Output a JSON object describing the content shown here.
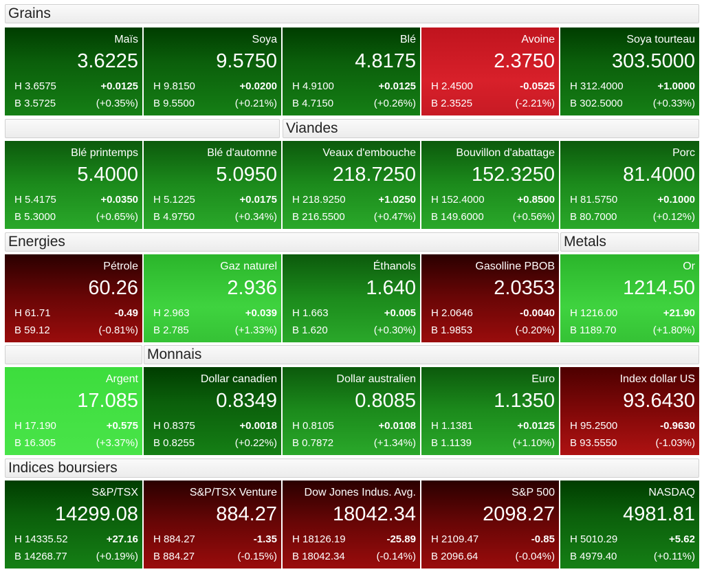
{
  "sections": [
    {
      "label": "Grains",
      "tiles": [
        {
          "name": "Maïs",
          "price": "3.6225",
          "high": "H 3.6575",
          "low": "B 3.5725",
          "change": "+0.0125",
          "pct": "(+0.35%)"
        },
        {
          "name": "Soya",
          "price": "9.5750",
          "high": "H 9.8150",
          "low": "B 9.5500",
          "change": "+0.0200",
          "pct": "(+0.21%)"
        },
        {
          "name": "Blé",
          "price": "4.8175",
          "high": "H 4.9100",
          "low": "B 4.7150",
          "change": "+0.0125",
          "pct": "(+0.26%)"
        },
        {
          "name": "Avoine",
          "price": "2.3750",
          "high": "H 2.4500",
          "low": "B 2.3525",
          "change": "-0.0525",
          "pct": "(-2.21%)"
        },
        {
          "name": "Soya tourteau",
          "price": "303.5000",
          "high": "H 312.4000",
          "low": "B 302.5000",
          "change": "+1.0000",
          "pct": "(+0.33%)"
        }
      ]
    },
    {
      "label": "Viandes",
      "tiles": [
        {
          "name": "Blé printemps",
          "price": "5.4000",
          "high": "H 5.4175",
          "low": "B 5.3000",
          "change": "+0.0350",
          "pct": "(+0.65%)"
        },
        {
          "name": "Blé d'automne",
          "price": "5.0950",
          "high": "H 5.1225",
          "low": "B 4.9750",
          "change": "+0.0175",
          "pct": "(+0.34%)"
        },
        {
          "name": "Veaux d'embouche",
          "price": "218.7250",
          "high": "H 218.9250",
          "low": "B 216.5500",
          "change": "+1.0250",
          "pct": "(+0.47%)"
        },
        {
          "name": "Bouvillon d'abattage",
          "price": "152.3250",
          "high": "H 152.4000",
          "low": "B 149.6000",
          "change": "+0.8500",
          "pct": "(+0.56%)"
        },
        {
          "name": "Porc",
          "price": "81.4000",
          "high": "H 81.5750",
          "low": "B 80.7000",
          "change": "+0.1000",
          "pct": "(+0.12%)"
        }
      ]
    },
    {
      "label": "Energies",
      "label2": "Metals",
      "tiles": [
        {
          "name": "Pétrole",
          "price": "60.26",
          "high": "H 61.71",
          "low": "B 59.12",
          "change": "-0.49",
          "pct": "(-0.81%)"
        },
        {
          "name": "Gaz naturel",
          "price": "2.936",
          "high": "H 2.963",
          "low": "B 2.785",
          "change": "+0.039",
          "pct": "(+1.33%)"
        },
        {
          "name": "Éthanols",
          "price": "1.640",
          "high": "H 1.663",
          "low": "B 1.620",
          "change": "+0.005",
          "pct": "(+0.30%)"
        },
        {
          "name": "Gasolline PBOB",
          "price": "2.0353",
          "high": "H 2.0646",
          "low": "B 1.9853",
          "change": "-0.0040",
          "pct": "(-0.20%)"
        },
        {
          "name": "Or",
          "price": "1214.50",
          "high": "H 1216.00",
          "low": "B 1189.70",
          "change": "+21.90",
          "pct": "(+1.80%)"
        }
      ]
    },
    {
      "label": "Monnais",
      "tiles": [
        {
          "name": "Argent",
          "price": "17.085",
          "high": "H 17.190",
          "low": "B 16.305",
          "change": "+0.575",
          "pct": "(+3.37%)"
        },
        {
          "name": "Dollar canadien",
          "price": "0.8349",
          "high": "H 0.8375",
          "low": "B 0.8255",
          "change": "+0.0018",
          "pct": "(+0.22%)"
        },
        {
          "name": "Dollar australien",
          "price": "0.8085",
          "high": "H 0.8105",
          "low": "B 0.7872",
          "change": "+0.0108",
          "pct": "(+1.34%)"
        },
        {
          "name": "Euro",
          "price": "1.1350",
          "high": "H 1.1381",
          "low": "B 1.1139",
          "change": "+0.0125",
          "pct": "(+1.10%)"
        },
        {
          "name": "Index dollar US",
          "price": "93.6430",
          "high": "H 95.2500",
          "low": "B 93.5550",
          "change": "-0.9630",
          "pct": "(-1.03%)"
        }
      ]
    },
    {
      "label": "Indices boursiers",
      "tiles": [
        {
          "name": "S&P/TSX",
          "price": "14299.08",
          "high": "H 14335.52",
          "low": "B 14268.77",
          "change": "+27.16",
          "pct": "(+0.19%)"
        },
        {
          "name": "S&P/TSX Venture",
          "price": "884.27",
          "high": "H 884.27",
          "low": "B 884.27",
          "change": "-1.35",
          "pct": "(-0.15%)"
        },
        {
          "name": "Dow Jones Indus. Avg.",
          "price": "18042.34",
          "high": "H 18126.19",
          "low": "B 18042.34",
          "change": "-25.89",
          "pct": "(-0.14%)"
        },
        {
          "name": "S&P 500",
          "price": "2098.27",
          "high": "H 2109.47",
          "low": "B 2096.64",
          "change": "-0.85",
          "pct": "(-0.04%)"
        },
        {
          "name": "NASDAQ",
          "price": "4981.81",
          "high": "H 5010.29",
          "low": "B 4979.40",
          "change": "+5.62",
          "pct": "(+0.11%)"
        }
      ]
    }
  ]
}
